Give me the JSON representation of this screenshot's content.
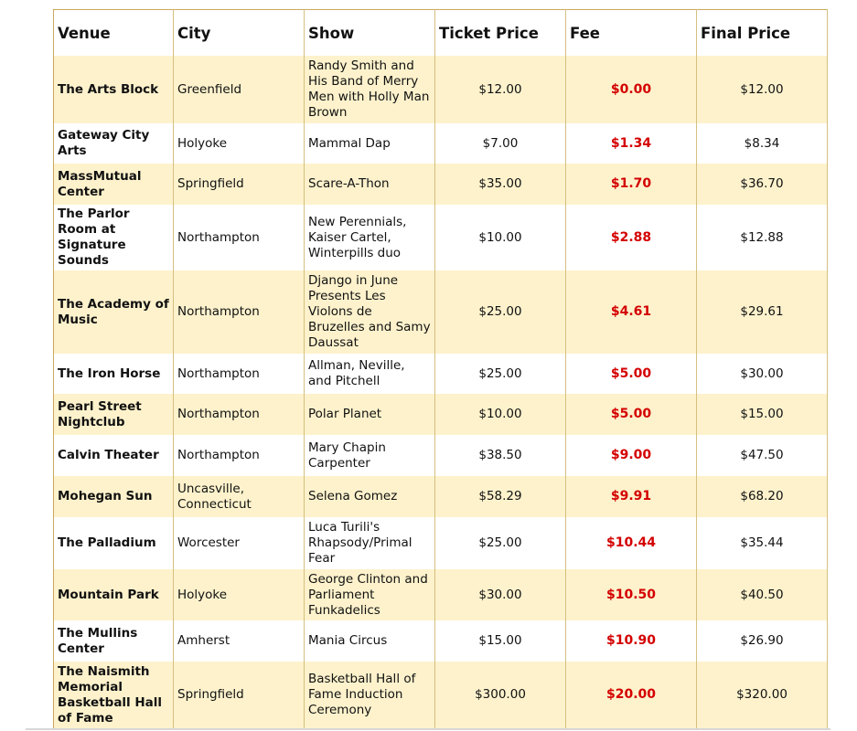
{
  "table": {
    "headers": [
      "Venue",
      "City",
      "Show",
      "Ticket Price",
      "Fee",
      "Final Price"
    ],
    "rows": [
      {
        "venue": "The Arts Block",
        "city": "Greenfield",
        "show": "Randy Smith and His Band of Merry Men with Holly Man Brown",
        "ticket": "$12.00",
        "fee": "$0.00",
        "final": "$12.00"
      },
      {
        "venue": "Gateway City Arts",
        "city": "Holyoke",
        "show": "Mammal Dap",
        "ticket": "$7.00",
        "fee": "$1.34",
        "final": "$8.34"
      },
      {
        "venue": "MassMutual Center",
        "city": "Springfield",
        "show": "Scare-A-Thon",
        "ticket": "$35.00",
        "fee": "$1.70",
        "final": "$36.70"
      },
      {
        "venue": "The Parlor Room at Signature Sounds",
        "city": "Northampton",
        "show": "New Perennials, Kaiser Cartel, Winterpills duo",
        "ticket": "$10.00",
        "fee": "$2.88",
        "final": "$12.88"
      },
      {
        "venue": "The Academy of Music",
        "city": "Northampton",
        "show": "Django in June Presents Les Violons de Bruzelles and Samy Daussat",
        "ticket": "$25.00",
        "fee": "$4.61",
        "final": "$29.61"
      },
      {
        "venue": "The Iron Horse",
        "city": "Northampton",
        "show": "Allman, Neville, and Pitchell",
        "ticket": "$25.00",
        "fee": "$5.00",
        "final": "$30.00"
      },
      {
        "venue": "Pearl Street Nightclub",
        "city": "Northampton",
        "show": "Polar Planet",
        "ticket": "$10.00",
        "fee": "$5.00",
        "final": "$15.00"
      },
      {
        "venue": "Calvin Theater",
        "city": "Northampton",
        "show": "Mary Chapin Carpenter",
        "ticket": "$38.50",
        "fee": "$9.00",
        "final": "$47.50"
      },
      {
        "venue": "Mohegan Sun",
        "city": "Uncasville, Connecticut",
        "show": "Selena Gomez",
        "ticket": "$58.29",
        "fee": "$9.91",
        "final": "$68.20"
      },
      {
        "venue": "The Palladium",
        "city": "Worcester",
        "show": "Luca Turili's Rhapsody/Primal Fear",
        "ticket": "$25.00",
        "fee": "$10.44",
        "final": "$35.44"
      },
      {
        "venue": "Mountain Park",
        "city": "Holyoke",
        "show": "George Clinton and Parliament Funkadelics",
        "ticket": "$30.00",
        "fee": "$10.50",
        "final": "$40.50"
      },
      {
        "venue": "The Mullins Center",
        "city": "Amherst",
        "show": "Mania Circus",
        "ticket": "$15.00",
        "fee": "$10.90",
        "final": "$26.90"
      },
      {
        "venue": "The Naismith Memorial Basketball Hall of Fame",
        "city": "Springfield",
        "show": "Basketball Hall of Fame Induction Ceremony",
        "ticket": "$300.00",
        "fee": "$20.00",
        "final": "$320.00"
      }
    ]
  },
  "colors": {
    "border": "#c8a95c",
    "stripe": "#fdf2cc",
    "fee_text": "#d40000"
  }
}
